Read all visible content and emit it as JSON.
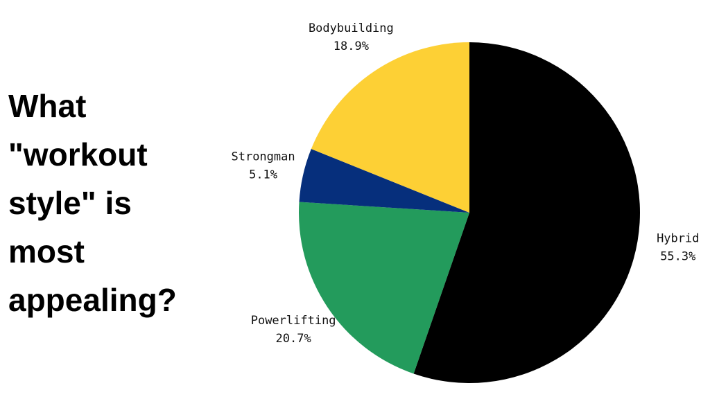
{
  "chart_data": {
    "type": "pie",
    "title": "What \"workout style\" is most appealing?",
    "categories": [
      "Hybrid",
      "Powerlifting",
      "Strongman",
      "Bodybuilding"
    ],
    "values": [
      55.3,
      20.7,
      5.1,
      18.9
    ],
    "value_labels": [
      "55.3%",
      "20.7%",
      "5.1%",
      "18.9%"
    ],
    "colors": [
      "#000000",
      "#239b5c",
      "#062f7c",
      "#fdd035"
    ]
  }
}
